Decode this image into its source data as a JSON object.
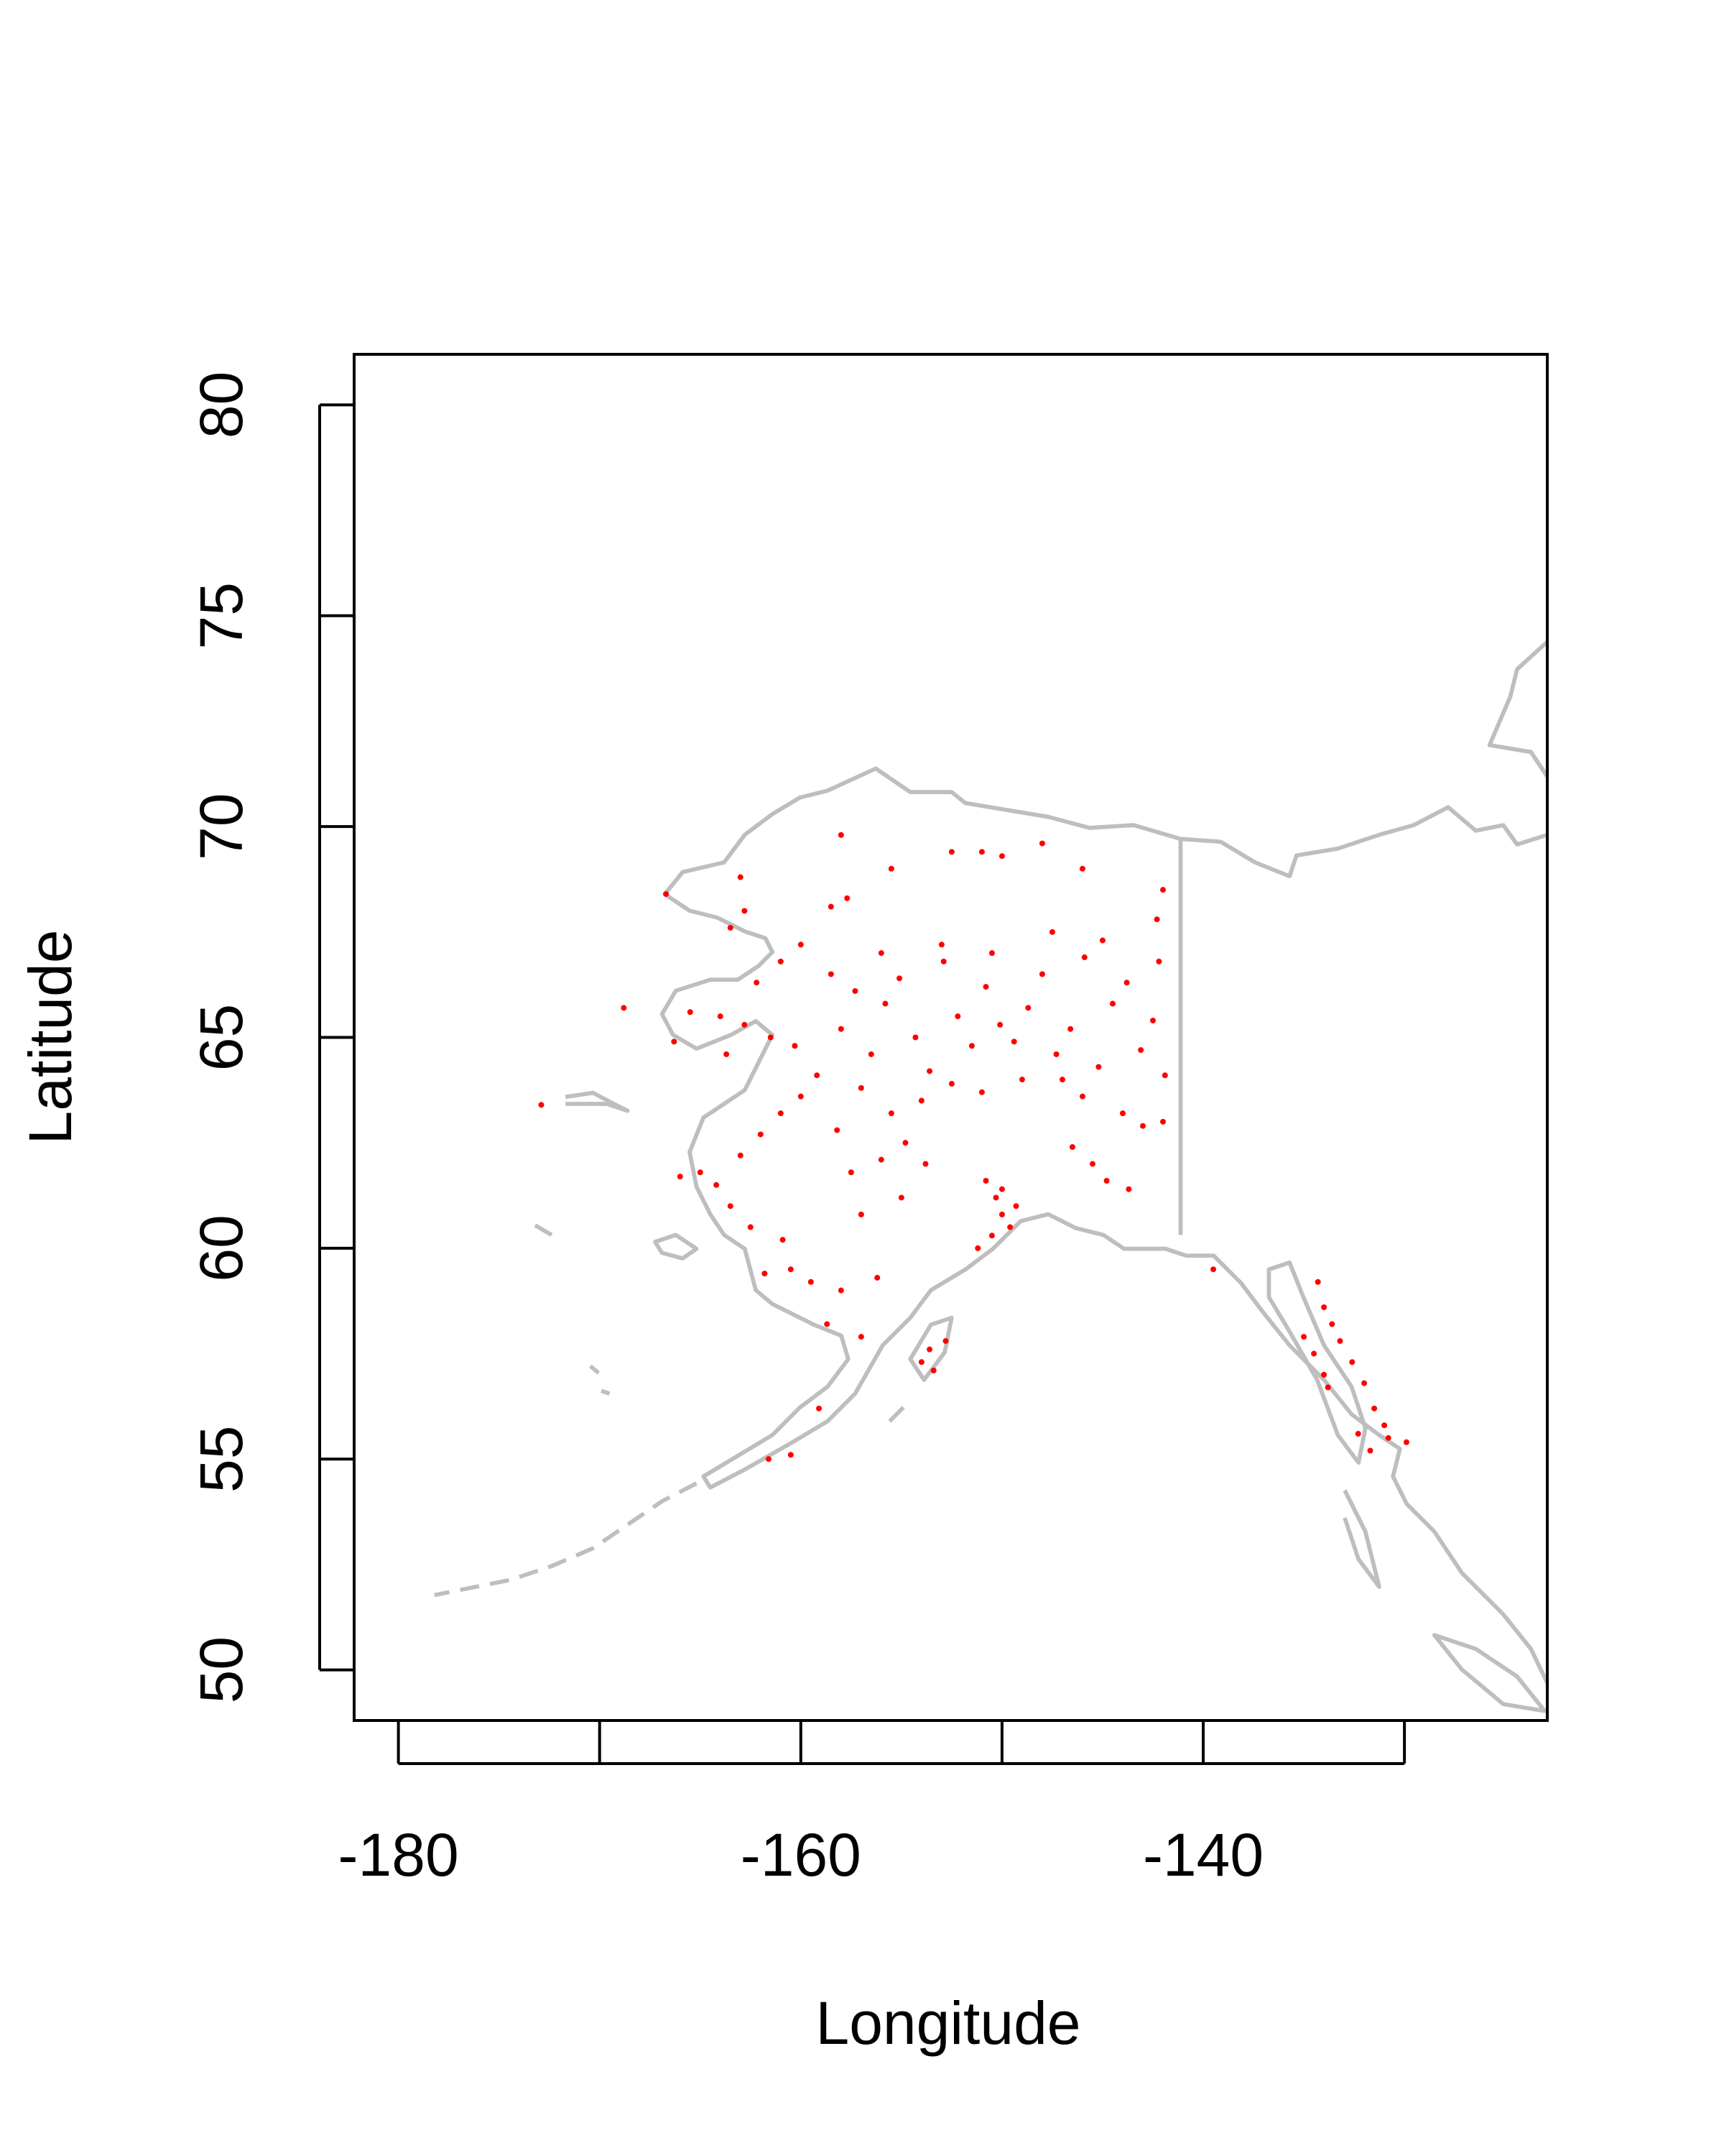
{
  "chart_data": {
    "type": "scatter",
    "x_label": "Longitude",
    "y_label": "Latitude",
    "xlim": [
      -182.2,
      -122.9
    ],
    "ylim": [
      48.8,
      81.2
    ],
    "xticks": [
      -180,
      {
        "value": -170,
        "label": null
      },
      -160,
      {
        "value": -150,
        "label": null
      },
      -140,
      {
        "value": -130,
        "label": null
      }
    ],
    "yticks": [
      50,
      55,
      60,
      65,
      70,
      75,
      80
    ],
    "series": [
      {
        "color": "#ff0000",
        "x": [
          -158,
          -157.3,
          -156.5,
          -155.8,
          -155.1,
          -154.3,
          -153.6,
          -152.9,
          -152.2,
          -151.5,
          -150.8,
          -150.1,
          -149.4,
          -148.7,
          -148.0,
          -147.3,
          -146.6,
          -145.9,
          -145.2,
          -144.5,
          -143.8,
          -143.1,
          -142.5,
          -142.2,
          -141.9,
          -153.0,
          -150.5,
          -147.5,
          -145.0,
          -156.0,
          -158.5,
          -157.0,
          -155.5,
          -154.0,
          -152.5,
          -151.0,
          -149.0,
          -147.0,
          -146.0,
          -144.0,
          -143.0,
          -142.0,
          -145.5,
          -144.8,
          -143.7,
          -146.5,
          -154.8,
          -156.0,
          -157.5,
          -158.2,
          -153.8,
          -155.0,
          -157.0,
          -156.2,
          -158.0,
          -159.5,
          -160.5,
          -161.8,
          -160.9,
          -162.5,
          -163.5,
          -164.2,
          -165.0,
          -166.0,
          -163.0,
          -162.0,
          -161.0,
          -160.0,
          -159.2,
          -160.3,
          -161.5,
          -162.8,
          -164.0,
          -165.5,
          -166.3,
          -163.7,
          -162.2,
          -161.0,
          -160.0,
          -163.5,
          -162.8,
          -158.5,
          -157.7,
          -163.0,
          -155.5,
          -152.5,
          -151.0,
          -150.0,
          -148.0,
          -158.0,
          -146.0,
          -142.0,
          -142.3,
          -168.8,
          -166.7,
          -172.9,
          -150.8,
          -150.3,
          -150.0,
          -149.6,
          -150.5,
          -151.2,
          -149.3,
          -150.0,
          -153.6,
          -152.8,
          -154.0,
          -153.4,
          -157.0,
          -159.1,
          -160.5,
          -161.6,
          -158.7,
          -134.3,
          -134.0,
          -133.6,
          -133.2,
          -134.5,
          -134.0,
          -132.6,
          -132.0,
          -131.5,
          -131.0,
          -130.8,
          -132.3,
          -131.7,
          -129.9,
          -133.8,
          -135.0,
          -139.5
        ],
        "values": [
          65.2,
          66.1,
          64.6,
          65.8,
          66.4,
          65.0,
          64.2,
          66.8,
          65.5,
          64.8,
          66.2,
          65.3,
          64.9,
          65.7,
          66.5,
          64.6,
          65.2,
          66.9,
          64.3,
          65.8,
          66.3,
          64.7,
          65.4,
          66.8,
          64.1,
          67.2,
          67.0,
          67.5,
          67.3,
          67.0,
          66.5,
          63.8,
          63.2,
          63.5,
          63.9,
          63.7,
          64.0,
          64.0,
          63.6,
          63.2,
          62.9,
          63.0,
          62.0,
          61.6,
          61.4,
          62.4,
          62.5,
          62.1,
          61.8,
          62.8,
          62.0,
          61.2,
          60.8,
          59.3,
          59.0,
          59.2,
          59.5,
          59.4,
          60.2,
          60.5,
          61.0,
          61.5,
          61.8,
          61.7,
          62.2,
          62.7,
          63.2,
          63.6,
          64.1,
          64.8,
          65.0,
          65.3,
          65.5,
          65.6,
          64.9,
          64.6,
          66.3,
          66.8,
          67.2,
          67.6,
          68.0,
          68.1,
          68.3,
          68.8,
          69.0,
          69.4,
          69.4,
          69.3,
          69.6,
          69.8,
          69.0,
          68.5,
          67.8,
          65.7,
          68.4,
          63.4,
          61.6,
          61.2,
          60.8,
          60.5,
          60.3,
          60.0,
          61.0,
          61.4,
          57.6,
          57.8,
          57.3,
          57.1,
          57.9,
          56.2,
          55.1,
          55.0,
          58.2,
          59.2,
          58.6,
          58.2,
          57.8,
          57.5,
          57.0,
          57.3,
          56.8,
          56.2,
          55.8,
          55.5,
          55.6,
          55.2,
          55.4,
          56.7,
          57.9,
          59.5
        ]
      }
    ]
  }
}
